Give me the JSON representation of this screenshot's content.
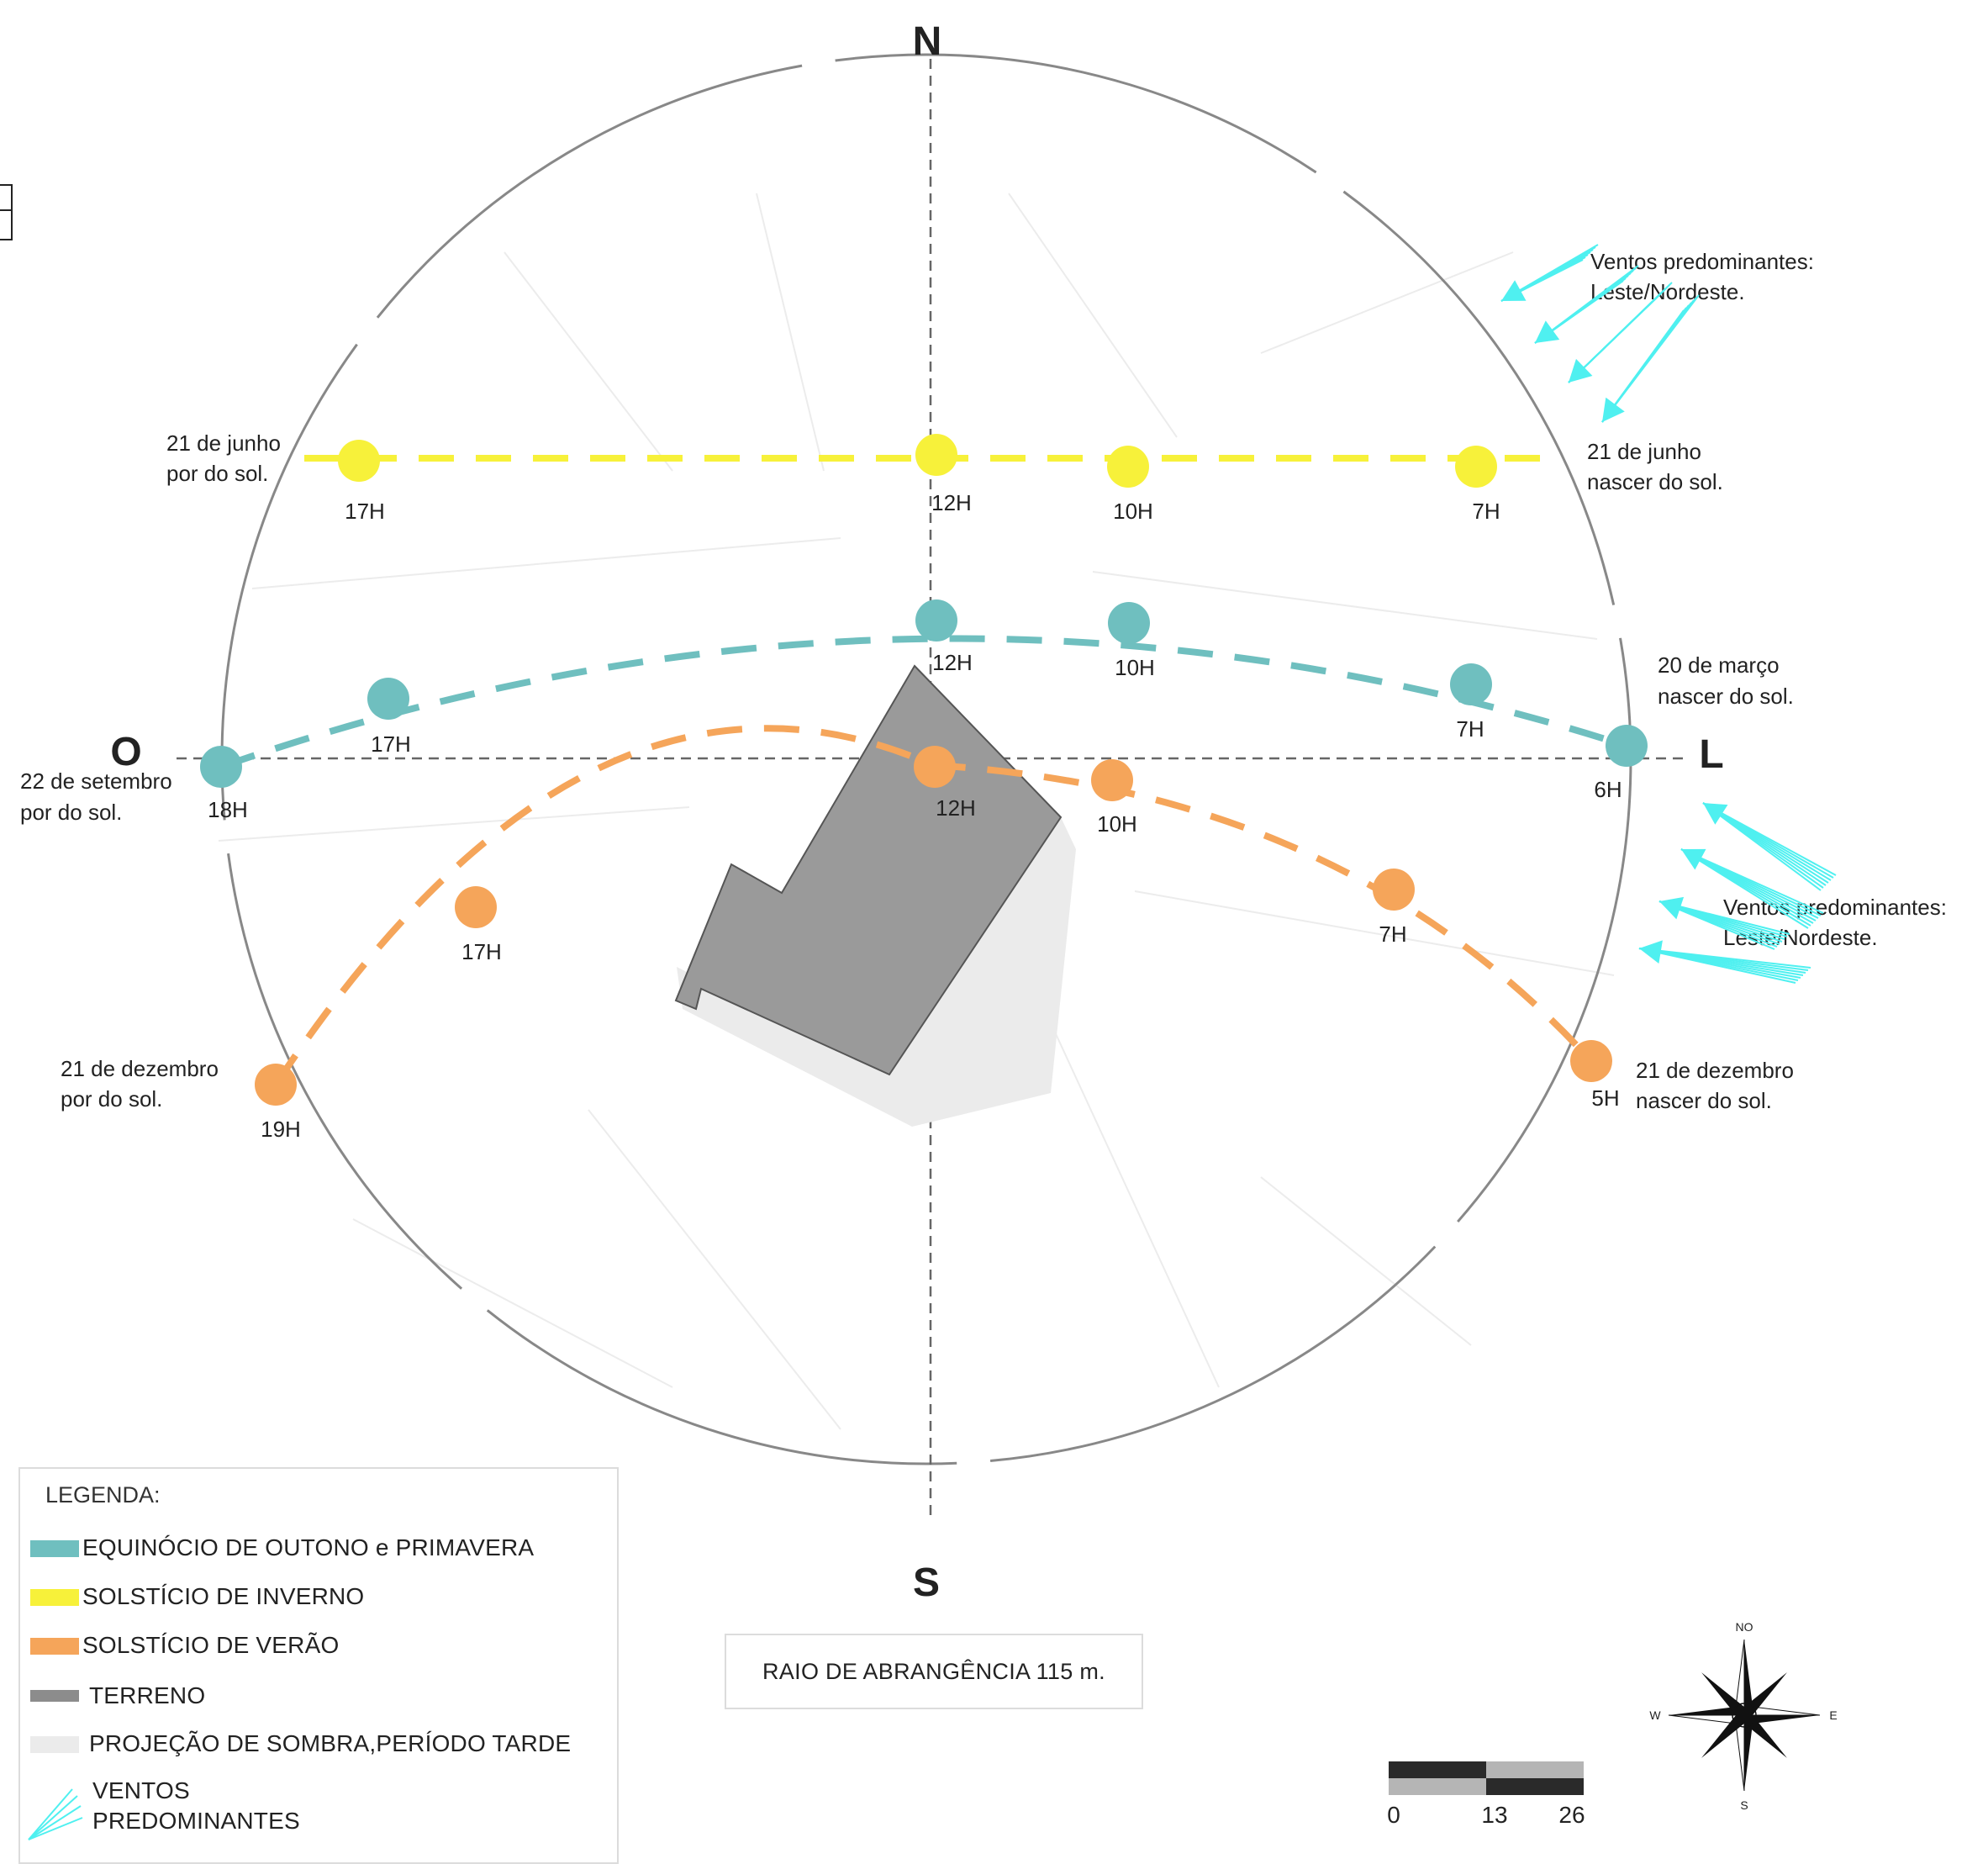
{
  "compass": {
    "north": "N",
    "south": "S",
    "east": "L",
    "west": "O"
  },
  "winter_path": {
    "color": "#f7f13a",
    "start_label": [
      "21 de junho",
      "por do sol."
    ],
    "end_label": [
      "21 de junho",
      "nascer do sol."
    ],
    "hours": [
      "17H",
      "12H",
      "10H",
      "7H"
    ]
  },
  "equinox_path": {
    "color": "#6fbfbf",
    "start_label": [
      "22 de setembro",
      "por do sol."
    ],
    "end_label": [
      "20 de março",
      "nascer do sol."
    ],
    "hours": [
      "18H",
      "17H",
      "12H",
      "10H",
      "7H",
      "6H"
    ]
  },
  "summer_path": {
    "color": "#f5a55a",
    "start_label": [
      "21 de dezembro",
      "por do sol."
    ],
    "end_label": [
      "21 de dezembro",
      "nascer do sol."
    ],
    "hours": [
      "19H",
      "17H",
      "12H",
      "10H",
      "7H",
      "5H"
    ]
  },
  "winds": {
    "color": "#4ff0f0",
    "upper_label": [
      "Ventos predominantes:",
      "Leste/Nordeste."
    ],
    "lower_label": [
      "Ventos predominantes:",
      "Leste/Nordeste."
    ]
  },
  "legend": {
    "title": "LEGENDA:",
    "items": [
      {
        "label": "EQUINÓCIO DE OUTONO e PRIMAVERA",
        "color": "#6fbfbf"
      },
      {
        "label": "SOLSTÍCIO DE INVERNO",
        "color": "#f7f13a"
      },
      {
        "label": "SOLSTÍCIO DE VERÃO",
        "color": "#f5a55a"
      },
      {
        "label": "TERRENO",
        "color": "#8c8c8c"
      },
      {
        "label": "PROJEÇÃO DE SOMBRA,PERÍODO TARDE",
        "color": "#ebebeb"
      }
    ],
    "wind_label": [
      "VENTOS",
      "PREDOMINANTES"
    ]
  },
  "radius_text": "RAIO DE ABRANGÊNCIA 115 m.",
  "scale_bar": {
    "labels": [
      "0",
      "13",
      "26"
    ]
  },
  "rose": {
    "n": "NO",
    "s": "S",
    "e": "E",
    "w": "W"
  }
}
